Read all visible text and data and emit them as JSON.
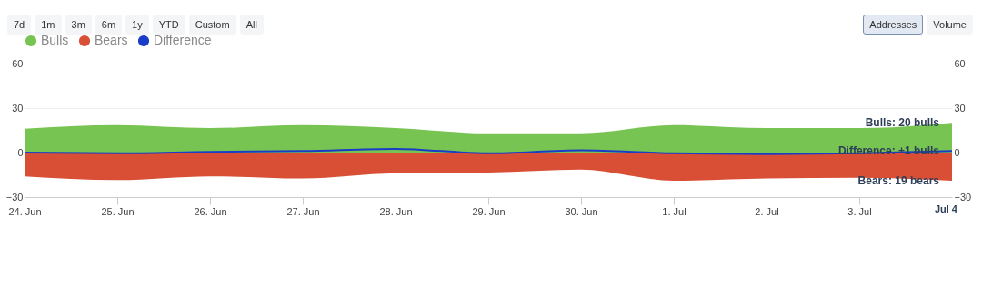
{
  "chart_data": {
    "type": "area",
    "x": [
      "--06-24",
      "--06-25",
      "--06-26",
      "--06-27",
      "--06-28",
      "--06-29",
      "--06-30",
      "--07-01",
      "--07-02",
      "--07-03",
      "--07-04"
    ],
    "series": [
      {
        "name": "Bulls",
        "color": "#78c452",
        "values": [
          16,
          18.5,
          16.5,
          18.5,
          16.5,
          13,
          13,
          18.5,
          16.5,
          16.5,
          20
        ]
      },
      {
        "name": "Bears",
        "color": "#d94f36",
        "values": [
          -16,
          -18.5,
          -16,
          -17.5,
          -14,
          -13.5,
          -11.5,
          -19,
          -17.5,
          -17,
          -19
        ]
      },
      {
        "name": "Difference",
        "type": "line",
        "color": "#1a3cc8",
        "values": [
          0,
          -0.5,
          0.5,
          1,
          2.5,
          -0.5,
          1.5,
          -0.5,
          -1,
          -0.5,
          1
        ]
      }
    ],
    "xlim": [
      "--06-24",
      "--07-04"
    ],
    "xticks": [
      {
        "value": "--06-24",
        "label": "24. Jun"
      },
      {
        "value": "--06-25",
        "label": "25. Jun"
      },
      {
        "value": "--06-26",
        "label": "26. Jun"
      },
      {
        "value": "--06-27",
        "label": "27. Jun"
      },
      {
        "value": "--06-28",
        "label": "28. Jun"
      },
      {
        "value": "--06-29",
        "label": "29. Jun"
      },
      {
        "value": "--06-30",
        "label": "30. Jun"
      },
      {
        "value": "--07-01",
        "label": "1. Jul"
      },
      {
        "value": "--07-02",
        "label": "2. Jul"
      },
      {
        "value": "--07-03",
        "label": "3. Jul"
      }
    ],
    "ylim": [
      -30,
      60
    ],
    "yticks": [
      -30,
      0,
      30,
      60
    ],
    "y2lim": [
      -30,
      60
    ],
    "y2ticks": [
      -30,
      0,
      30,
      60
    ],
    "grid": "y",
    "legend": "top left",
    "annotations": [
      "7d",
      "1m",
      "3m",
      "6m",
      "1y",
      "YTD",
      "Custom",
      "All",
      "Addresses",
      "Volume",
      {
        "text": "Bulls: 20 bulls",
        "x": "--07-04",
        "y": 20
      },
      {
        "text": "Difference: +1 bulls",
        "x": "--07-04",
        "y": 1
      },
      {
        "text": "Bears: 19 bears",
        "x": "--07-04",
        "y": -19
      },
      "Jul 4"
    ]
  }
}
